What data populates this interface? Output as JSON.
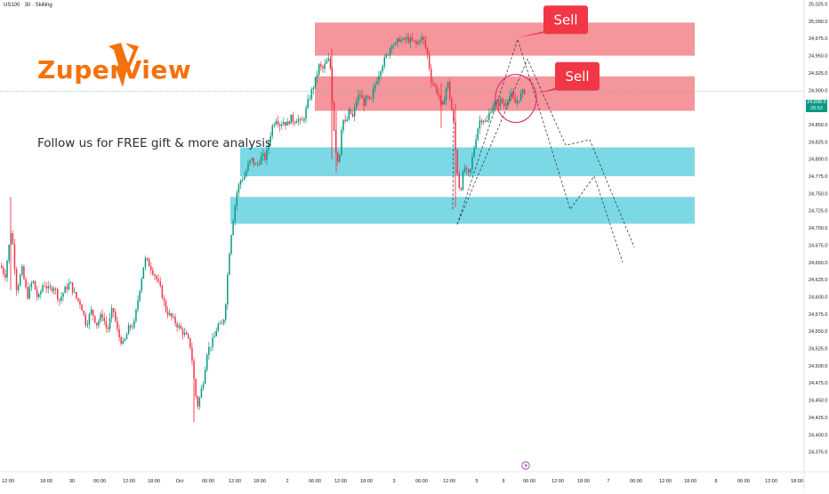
{
  "symbol_title": "US100 · 30 · Skilling",
  "brand": {
    "name": "ZuperView",
    "tagline": "Follow us for FREE gift & more analysis",
    "accent_color": "#f4720b"
  },
  "last_price": {
    "value": "24,898.6",
    "countdown": "26:52",
    "color": "#089981"
  },
  "colors": {
    "up": "#089981",
    "down": "#f23645",
    "supply_zone": "#f5959c",
    "demand_zone": "#7dd8e6",
    "callout": "#f23645"
  },
  "chart_data": {
    "type": "candlestick",
    "title": "",
    "xlabel": "",
    "ylabel": "",
    "ylim": [
      24375,
      25025
    ],
    "y_ticks": [
      24375,
      24400,
      24425,
      24450,
      24475,
      24500,
      24525,
      24550,
      24575,
      24600,
      24625,
      24650,
      24675,
      24700,
      24725,
      24750,
      24775,
      24800,
      24825,
      24850,
      24875,
      24900,
      24925,
      24950,
      24975,
      25000,
      25025
    ],
    "y_tick_labels": [
      "24,375.0",
      "24,400.0",
      "24,425.0",
      "24,450.0",
      "24,475.0",
      "24,500.0",
      "24,525.0",
      "24,550.0",
      "24,575.0",
      "24,600.0",
      "24,625.0",
      "24,650.0",
      "24,675.0",
      "24,700.0",
      "24,725.0",
      "24,750.0",
      "24,775.0",
      "24,800.0",
      "24,825.0",
      "24,850.0",
      "24,875.0",
      "24,900.0",
      "24,925.0",
      "24,950.0",
      "24,975.0",
      "25,000.0",
      "25,025.0"
    ],
    "x_tick_labels": [
      "12:00",
      "18:00",
      "30",
      "06:00",
      "12:00",
      "18:00",
      "Oct",
      "06:00",
      "12:00",
      "18:00",
      "2",
      "06:00",
      "12:00",
      "18:00",
      "3",
      "06:00",
      "12:00",
      "5",
      "6",
      "06:00",
      "12:00",
      "18:00",
      "7",
      "06:00",
      "12:00",
      "18:00",
      "8",
      "06:00",
      "12:00",
      "18:00"
    ],
    "price_path": [
      [
        0,
        24645
      ],
      [
        5,
        24630
      ],
      [
        12,
        24700
      ],
      [
        18,
        24610
      ],
      [
        24,
        24640
      ],
      [
        30,
        24600
      ],
      [
        36,
        24625
      ],
      [
        42,
        24595
      ],
      [
        48,
        24620
      ],
      [
        54,
        24610
      ],
      [
        60,
        24615
      ],
      [
        66,
        24595
      ],
      [
        72,
        24610
      ],
      [
        78,
        24620
      ],
      [
        84,
        24600
      ],
      [
        90,
        24590
      ],
      [
        96,
        24560
      ],
      [
        102,
        24580
      ],
      [
        108,
        24560
      ],
      [
        114,
        24575
      ],
      [
        120,
        24550
      ],
      [
        126,
        24585
      ],
      [
        132,
        24545
      ],
      [
        138,
        24530
      ],
      [
        144,
        24555
      ],
      [
        150,
        24560
      ],
      [
        156,
        24610
      ],
      [
        162,
        24655
      ],
      [
        168,
        24645
      ],
      [
        174,
        24630
      ],
      [
        180,
        24610
      ],
      [
        186,
        24580
      ],
      [
        192,
        24570
      ],
      [
        198,
        24560
      ],
      [
        204,
        24550
      ],
      [
        210,
        24540
      ],
      [
        214,
        24525
      ],
      [
        218,
        24470
      ],
      [
        221,
        24440
      ],
      [
        224,
        24455
      ],
      [
        228,
        24480
      ],
      [
        232,
        24520
      ],
      [
        236,
        24530
      ],
      [
        240,
        24540
      ],
      [
        244,
        24560
      ],
      [
        248,
        24555
      ],
      [
        252,
        24575
      ],
      [
        255,
        24630
      ],
      [
        258,
        24680
      ],
      [
        262,
        24720
      ],
      [
        266,
        24755
      ],
      [
        270,
        24770
      ],
      [
        274,
        24775
      ],
      [
        278,
        24790
      ],
      [
        282,
        24800
      ],
      [
        286,
        24790
      ],
      [
        290,
        24795
      ],
      [
        294,
        24805
      ],
      [
        298,
        24800
      ],
      [
        302,
        24830
      ],
      [
        306,
        24850
      ],
      [
        310,
        24860
      ],
      [
        314,
        24850
      ],
      [
        318,
        24855
      ],
      [
        322,
        24850
      ],
      [
        326,
        24860
      ],
      [
        330,
        24855
      ],
      [
        334,
        24860
      ],
      [
        338,
        24850
      ],
      [
        342,
        24865
      ],
      [
        346,
        24885
      ],
      [
        350,
        24900
      ],
      [
        354,
        24915
      ],
      [
        358,
        24935
      ],
      [
        362,
        24930
      ],
      [
        366,
        24940
      ],
      [
        370,
        24945
      ],
      [
        373,
        24880
      ],
      [
        376,
        24820
      ],
      [
        380,
        24790
      ],
      [
        384,
        24860
      ],
      [
        388,
        24850
      ],
      [
        392,
        24870
      ],
      [
        396,
        24860
      ],
      [
        400,
        24885
      ],
      [
        404,
        24895
      ],
      [
        408,
        24880
      ],
      [
        412,
        24890
      ],
      [
        416,
        24880
      ],
      [
        420,
        24905
      ],
      [
        424,
        24920
      ],
      [
        428,
        24935
      ],
      [
        432,
        24945
      ],
      [
        436,
        24955
      ],
      [
        440,
        24970
      ],
      [
        444,
        24965
      ],
      [
        448,
        24975
      ],
      [
        452,
        24970
      ],
      [
        456,
        24975
      ],
      [
        460,
        24972
      ],
      [
        464,
        24970
      ],
      [
        468,
        24965
      ],
      [
        472,
        24978
      ],
      [
        476,
        24970
      ],
      [
        480,
        24950
      ],
      [
        484,
        24915
      ],
      [
        488,
        24905
      ],
      [
        492,
        24895
      ],
      [
        496,
        24870
      ],
      [
        500,
        24900
      ],
      [
        503,
        24910
      ],
      [
        506,
        24880
      ],
      [
        509,
        24855
      ],
      [
        512,
        24800
      ],
      [
        515,
        24760
      ],
      [
        518,
        24760
      ],
      [
        521,
        24790
      ],
      [
        524,
        24780
      ],
      [
        527,
        24775
      ],
      [
        530,
        24800
      ],
      [
        534,
        24830
      ],
      [
        538,
        24855
      ],
      [
        542,
        24860
      ],
      [
        546,
        24850
      ],
      [
        550,
        24870
      ],
      [
        554,
        24880
      ],
      [
        558,
        24878
      ],
      [
        562,
        24885
      ],
      [
        566,
        24878
      ],
      [
        570,
        24890
      ],
      [
        574,
        24893
      ],
      [
        578,
        24880
      ],
      [
        582,
        24888
      ],
      [
        586,
        24895
      ],
      [
        590,
        24899
      ]
    ],
    "zones": [
      {
        "kind": "supply",
        "x0": 354,
        "x1": 781,
        "y_low": 24950,
        "y_high": 24998
      },
      {
        "kind": "supply",
        "x0": 354,
        "x1": 781,
        "y_low": 24870,
        "y_high": 24920
      },
      {
        "kind": "demand",
        "x0": 270,
        "x1": 781,
        "y_low": 24775,
        "y_high": 24817
      },
      {
        "kind": "demand",
        "x0": 259,
        "x1": 781,
        "y_low": 24706,
        "y_high": 24745
      }
    ],
    "projections": [
      {
        "points": [
          [
            514,
            24705
          ],
          [
            582,
            24974
          ],
          [
            641,
            24727
          ],
          [
            668,
            24775
          ],
          [
            700,
            24650
          ]
        ]
      },
      {
        "points": [
          [
            514,
            24705
          ],
          [
            593,
            24945
          ],
          [
            636,
            24820
          ],
          [
            663,
            24828
          ],
          [
            713,
            24672
          ]
        ]
      },
      {
        "points": [
          [
            509,
            24727
          ],
          [
            510,
            24860
          ]
        ]
      }
    ],
    "annotations": [
      {
        "label": "Sell",
        "price": 25002,
        "x": 611,
        "tail_x": 582,
        "tail_price": 24976
      },
      {
        "label": "Sell",
        "price": 24920,
        "x": 624,
        "tail_x": 603,
        "tail_price": 24895
      }
    ],
    "highlight_circle": {
      "x": 580,
      "price": 24888
    },
    "current_price": 24898.6,
    "event_marker_x": 591
  }
}
